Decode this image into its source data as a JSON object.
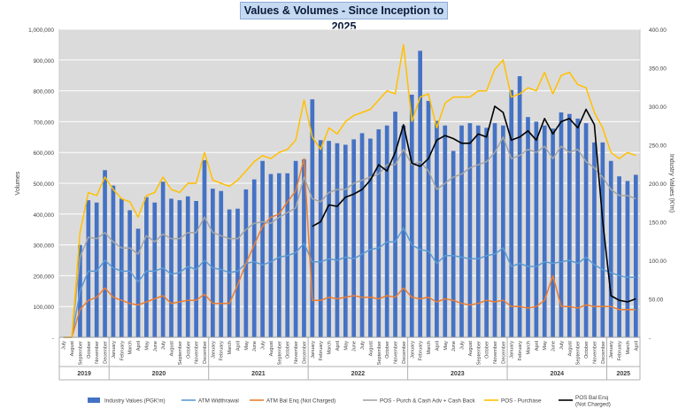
{
  "chart_data": {
    "type": "bar",
    "title": "Values & Volumes - Since Inception to 2025",
    "ylabel_left": "Volumes",
    "ylabel_right": "Industry Values (K'm)",
    "xlabel": "",
    "ylim_left": [
      0,
      1000000
    ],
    "ylim_right": [
      0,
      400
    ],
    "grid": true,
    "legend_position": "bottom",
    "left_ticks": [
      "-",
      "100,000",
      "200,000",
      "300,000",
      "400,000",
      "500,000",
      "600,000",
      "700,000",
      "800,000",
      "900,000",
      "1,000,000"
    ],
    "right_ticks": [
      "-",
      "50.00",
      "100.00",
      "150.00",
      "200.00",
      "250.00",
      "300.00",
      "350.00",
      "400.00"
    ],
    "categories": [
      "July",
      "August",
      "September",
      "October",
      "November",
      "December",
      "January",
      "February",
      "March",
      "April",
      "May",
      "June",
      "July",
      "August",
      "September",
      "October",
      "November",
      "December",
      "January",
      "February",
      "March",
      "April",
      "May",
      "June",
      "July",
      "August",
      "September",
      "October",
      "November",
      "December",
      "January",
      "February",
      "March",
      "April",
      "May",
      "June",
      "July",
      "August",
      "September",
      "October",
      "November",
      "December",
      "January",
      "February",
      "March",
      "April",
      "May",
      "June",
      "July",
      "August",
      "September",
      "October",
      "November",
      "December",
      "January",
      "February",
      "March",
      "April",
      "May",
      "June",
      "July",
      "August",
      "September",
      "October",
      "November",
      "December",
      "January",
      "February",
      "March",
      "April"
    ],
    "years": [
      {
        "label": "2019",
        "count": 6
      },
      {
        "label": "2020",
        "count": 12
      },
      {
        "label": "2021",
        "count": 12
      },
      {
        "label": "2022",
        "count": 12
      },
      {
        "label": "2023",
        "count": 12
      },
      {
        "label": "2024",
        "count": 12
      },
      {
        "label": "2025",
        "count": 4
      }
    ],
    "series": [
      {
        "name": "Industry Values (PGK'm)",
        "type": "bar",
        "axis": "right",
        "color": "#4472c4",
        "values": [
          0,
          0,
          120,
          178,
          175,
          217,
          197,
          180,
          165,
          141,
          182,
          175,
          202,
          180,
          178,
          183,
          177,
          230,
          193,
          190,
          166,
          167,
          192,
          205,
          229,
          212,
          213,
          213,
          229,
          231,
          309,
          256,
          255,
          252,
          250,
          257,
          265,
          258,
          270,
          275,
          293,
          275,
          315,
          372,
          307,
          281,
          275,
          242,
          275,
          278,
          275,
          272,
          278,
          275,
          321,
          339,
          286,
          280,
          275,
          271,
          292,
          290,
          284,
          278,
          253,
          253,
          229,
          209,
          203,
          211
        ]
      },
      {
        "name": "ATM Widthrawal",
        "type": "line",
        "axis": "left",
        "color": "#5b9bd5",
        "values": [
          0,
          0,
          150000,
          215000,
          215000,
          250000,
          225000,
          215000,
          215000,
          180000,
          215000,
          215000,
          225000,
          205000,
          210000,
          230000,
          220000,
          250000,
          225000,
          220000,
          210000,
          215000,
          240000,
          245000,
          235000,
          245000,
          260000,
          265000,
          275000,
          305000,
          245000,
          245000,
          255000,
          250000,
          260000,
          255000,
          270000,
          285000,
          290000,
          310000,
          310000,
          355000,
          300000,
          285000,
          280000,
          240000,
          265000,
          265000,
          260000,
          255000,
          255000,
          265000,
          270000,
          290000,
          230000,
          240000,
          230000,
          230000,
          245000,
          240000,
          245000,
          250000,
          240000,
          260000,
          235000,
          220000,
          210000,
          200000,
          195000,
          195000
        ]
      },
      {
        "name": "ATM Bal Enq (Not Charged)",
        "type": "line",
        "axis": "left",
        "color": "#ed7d31",
        "values": [
          0,
          0,
          90000,
          120000,
          130000,
          160000,
          130000,
          120000,
          110000,
          105000,
          115000,
          125000,
          135000,
          110000,
          115000,
          120000,
          120000,
          140000,
          110000,
          110000,
          110000,
          170000,
          240000,
          300000,
          360000,
          390000,
          400000,
          440000,
          475000,
          580000,
          120000,
          120000,
          130000,
          125000,
          130000,
          135000,
          130000,
          130000,
          125000,
          135000,
          130000,
          160000,
          130000,
          125000,
          130000,
          115000,
          125000,
          120000,
          110000,
          105000,
          110000,
          120000,
          115000,
          120000,
          100000,
          100000,
          95000,
          100000,
          120000,
          200000,
          100000,
          100000,
          95000,
          105000,
          100000,
          100000,
          100000,
          90000,
          90000,
          90000
        ]
      },
      {
        "name": "POS - Purch & Cash Adv + Cash Back",
        "type": "line",
        "axis": "left",
        "color": "#a5a5a5",
        "values": [
          0,
          0,
          260000,
          325000,
          320000,
          340000,
          310000,
          290000,
          290000,
          270000,
          330000,
          310000,
          335000,
          320000,
          320000,
          340000,
          340000,
          390000,
          340000,
          330000,
          320000,
          320000,
          350000,
          370000,
          375000,
          370000,
          390000,
          405000,
          420000,
          520000,
          450000,
          440000,
          470000,
          480000,
          480000,
          500000,
          510000,
          520000,
          530000,
          560000,
          560000,
          610000,
          560000,
          570000,
          540000,
          480000,
          500000,
          520000,
          530000,
          550000,
          560000,
          570000,
          600000,
          650000,
          580000,
          590000,
          610000,
          600000,
          620000,
          580000,
          620000,
          600000,
          610000,
          570000,
          550000,
          520000,
          480000,
          460000,
          460000,
          450000
        ]
      },
      {
        "name": "POS - Purchase",
        "type": "line",
        "axis": "left",
        "color": "#ffc000",
        "values": [
          0,
          0,
          340000,
          470000,
          460000,
          520000,
          480000,
          450000,
          440000,
          390000,
          460000,
          470000,
          520000,
          480000,
          470000,
          500000,
          500000,
          600000,
          510000,
          500000,
          490000,
          510000,
          540000,
          570000,
          590000,
          580000,
          600000,
          610000,
          640000,
          770000,
          650000,
          610000,
          680000,
          660000,
          700000,
          720000,
          730000,
          740000,
          770000,
          800000,
          790000,
          950000,
          700000,
          780000,
          790000,
          680000,
          760000,
          780000,
          780000,
          780000,
          800000,
          800000,
          870000,
          900000,
          780000,
          790000,
          810000,
          800000,
          860000,
          790000,
          850000,
          860000,
          820000,
          810000,
          730000,
          680000,
          600000,
          580000,
          600000,
          590000
        ]
      },
      {
        "name": "POS Bal Enq\n(Not Charged)",
        "type": "line",
        "axis": "left",
        "color": "#000000",
        "values": [
          null,
          null,
          null,
          null,
          null,
          null,
          null,
          null,
          null,
          null,
          null,
          null,
          null,
          null,
          null,
          null,
          null,
          null,
          null,
          null,
          null,
          null,
          null,
          null,
          null,
          null,
          null,
          null,
          null,
          null,
          360000,
          375000,
          430000,
          425000,
          455000,
          465000,
          480000,
          510000,
          560000,
          540000,
          600000,
          690000,
          565000,
          555000,
          580000,
          640000,
          655000,
          645000,
          630000,
          630000,
          660000,
          650000,
          750000,
          730000,
          640000,
          650000,
          670000,
          640000,
          710000,
          660000,
          700000,
          710000,
          680000,
          740000,
          690000,
          380000,
          135000,
          120000,
          115000,
          125000
        ]
      }
    ]
  }
}
